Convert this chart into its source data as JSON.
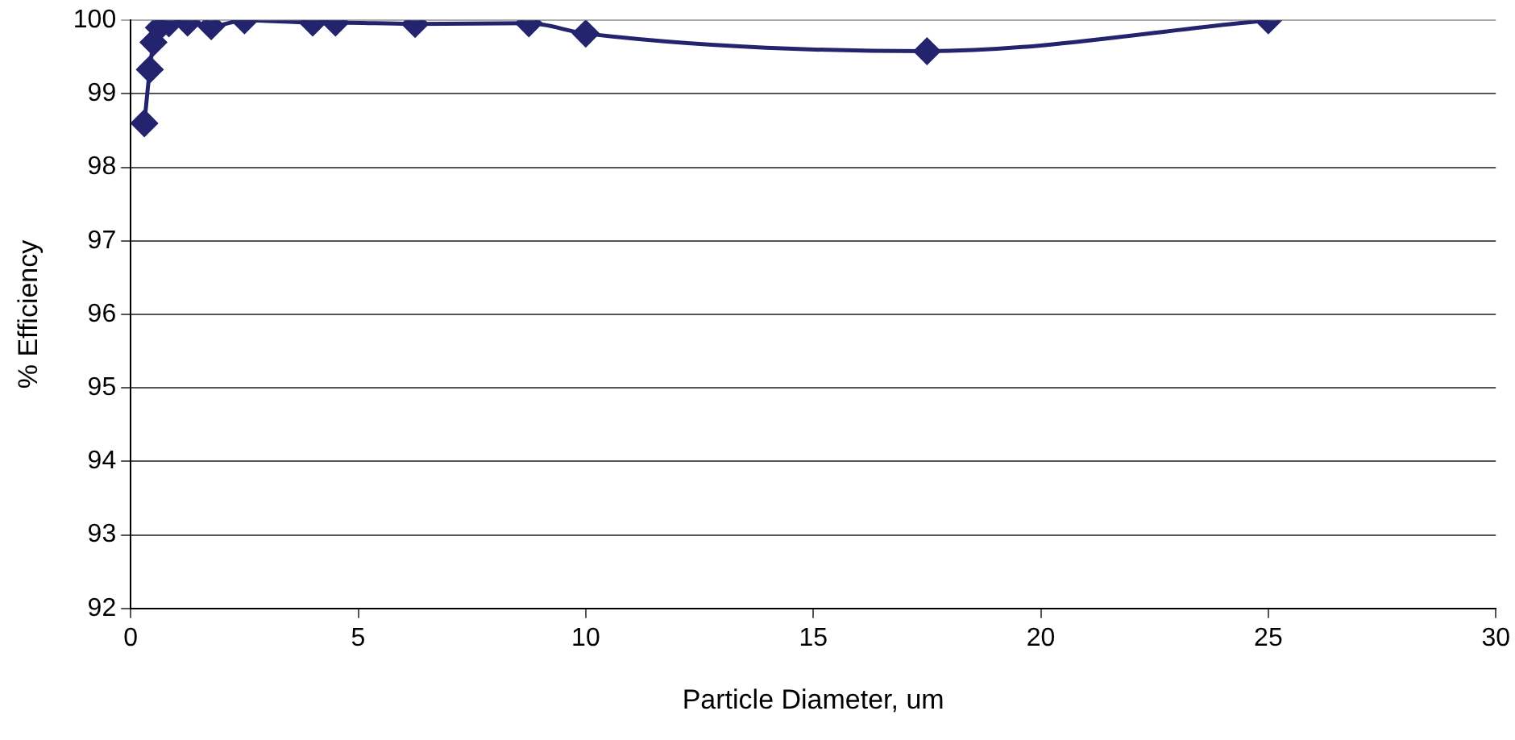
{
  "chart_data": {
    "type": "line",
    "xlabel": "Particle Diameter, um",
    "ylabel": "% Efficiency",
    "x": [
      0.3,
      0.42,
      0.5,
      0.62,
      0.84,
      1.25,
      1.77,
      2.5,
      4,
      4.5,
      6.25,
      8.75,
      10,
      17.5,
      25
    ],
    "series": [
      {
        "color": "#24246e",
        "values": [
          98.6,
          99.33,
          99.7,
          99.9,
          99.96,
          99.97,
          99.92,
          100,
          99.97,
          99.97,
          99.95,
          99.96,
          99.82,
          99.58,
          100
        ]
      }
    ],
    "xlim": [
      0,
      30
    ],
    "xticks": [
      0,
      5,
      10,
      15,
      20,
      25,
      30
    ],
    "ylim": [
      92,
      100
    ],
    "yticks": [
      92,
      93,
      94,
      95,
      96,
      97,
      98,
      99,
      100
    ],
    "grid": "y",
    "legend": false,
    "marker": "diamond",
    "line_style": "solid"
  }
}
